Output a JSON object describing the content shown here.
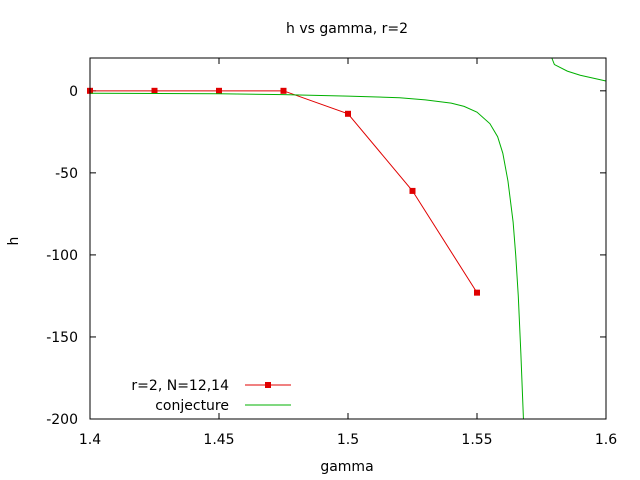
{
  "chart_data": {
    "type": "line",
    "title": "h vs gamma, r=2",
    "xlabel": "gamma",
    "ylabel": "h",
    "xlim": [
      1.4,
      1.6
    ],
    "ylim": [
      -200,
      20
    ],
    "xticks": [
      1.4,
      1.45,
      1.5,
      1.55,
      1.6
    ],
    "xtick_labels": [
      "1.4",
      "1.45",
      "1.5",
      "1.55",
      "1.6"
    ],
    "yticks": [
      0,
      -50,
      -100,
      -150,
      -200
    ],
    "ytick_labels": [
      "0",
      "-50",
      "-100",
      "-150",
      "-200"
    ],
    "grid": false,
    "legend_position": "bottom-left",
    "series": [
      {
        "name": "r=2, N=12,14",
        "color": "#e00000",
        "marker": "square",
        "x": [
          1.4,
          1.425,
          1.45,
          1.475,
          1.5,
          1.525,
          1.55
        ],
        "y": [
          0,
          0,
          0,
          0,
          -14,
          -61,
          -123
        ]
      },
      {
        "name": "conjecture",
        "color": "#00b000",
        "marker": "none",
        "x": [
          1.4,
          1.45,
          1.475,
          1.5,
          1.52,
          1.53,
          1.54,
          1.545,
          1.55,
          1.555,
          1.558,
          1.56,
          1.562,
          1.564,
          1.565,
          1.566,
          1.567,
          1.5675,
          1.568,
          1.568,
          1.579,
          1.58,
          1.585,
          1.59,
          1.6
        ],
        "y": [
          -1.5,
          -1.8,
          -2.3,
          -3.2,
          -4.2,
          -5.5,
          -7.5,
          -9.5,
          -13,
          -20,
          -28,
          -38,
          -55,
          -80,
          -100,
          -125,
          -160,
          -180,
          -200,
          null,
          20,
          16,
          12,
          9.5,
          6
        ]
      }
    ]
  }
}
